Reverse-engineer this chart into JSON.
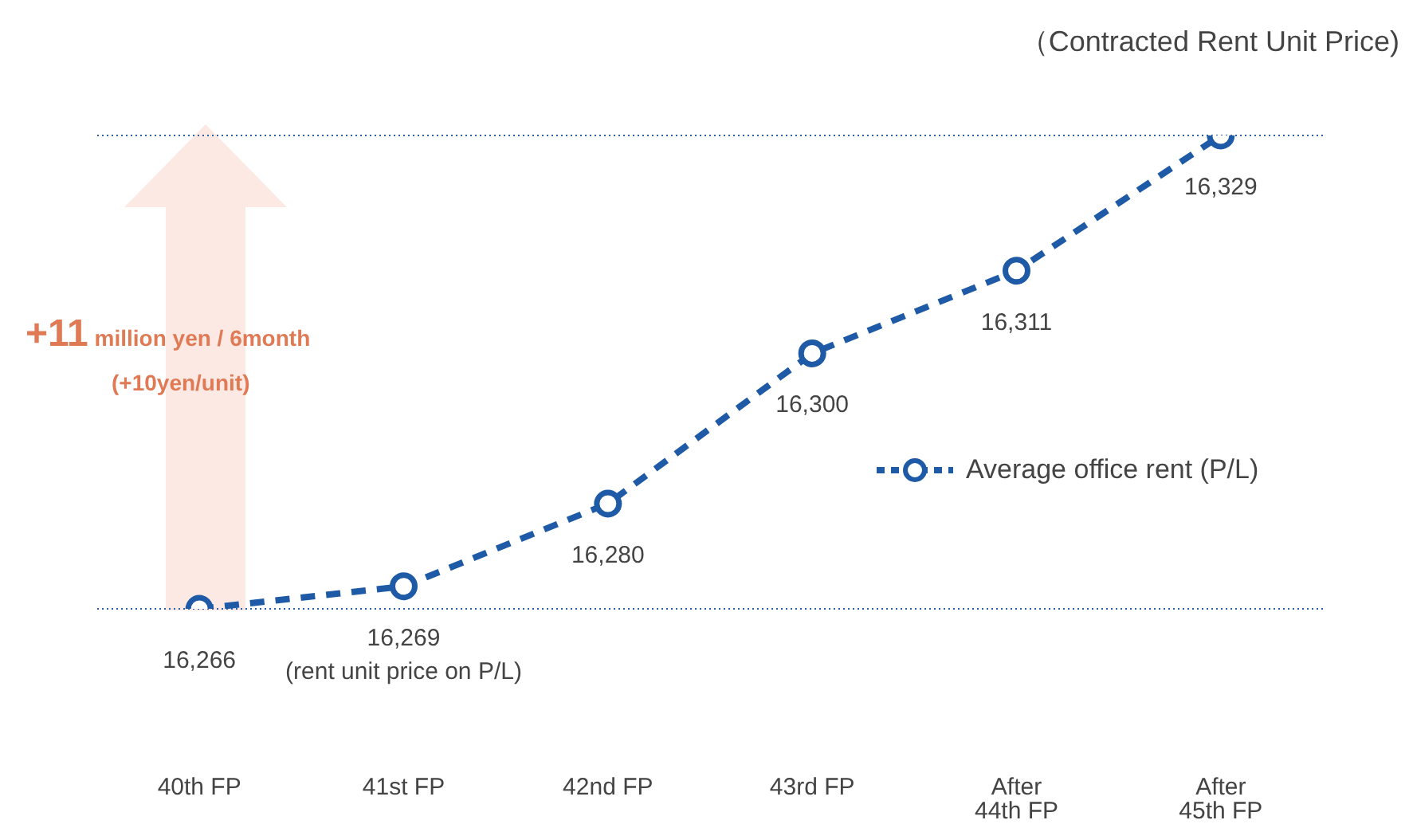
{
  "chart_data": {
    "type": "line",
    "title": "（Contracted Rent Unit Price)",
    "categories": [
      "40th FP",
      "41st FP",
      "42nd FP",
      "43rd FP",
      "After 44th FP",
      "After 45th FP"
    ],
    "series": [
      {
        "name": "Average office rent (P/L)",
        "color": "#1f5aa6",
        "values": [
          16266,
          16269,
          16280,
          16300,
          16311,
          16329
        ],
        "value_labels": [
          "16,266",
          "16,269",
          "16,280",
          "16,300",
          "16,311",
          "16,329"
        ]
      }
    ],
    "tick_labels": "x",
    "marker": "circle",
    "line_style": "dashed",
    "legend": "right",
    "ref_lines": [
      {
        "axis": "y",
        "value": 16266,
        "color": "#2e5fa8",
        "line_style": "dotted"
      },
      {
        "axis": "y",
        "value": 16329,
        "color": "#2e5fa8",
        "line_style": "dotted"
      }
    ],
    "annotations": [
      "+11 million yen / 6month",
      "(+10yen/unit)",
      {
        "text": "(rent unit price on P/L)",
        "x": "41st FP",
        "y": 16269
      }
    ]
  }
}
